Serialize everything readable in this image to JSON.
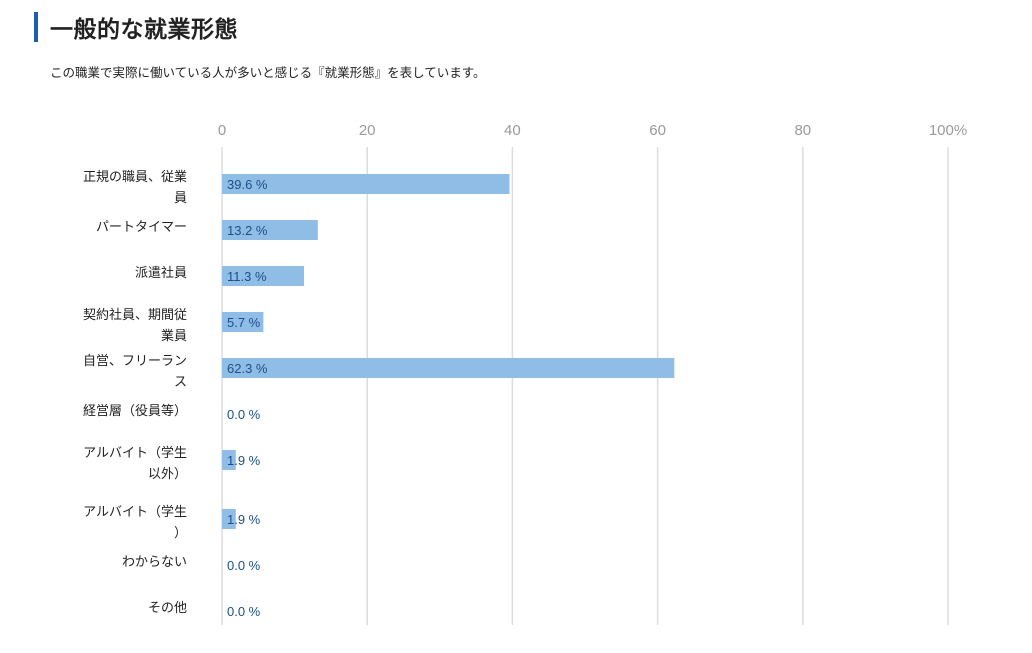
{
  "page": {
    "title": "一般的な就業形態",
    "description": "この職業で実際に働いている人が多いと感じる『就業形態』を表しています。"
  },
  "colors": {
    "accent": "#1a5fb4",
    "bar": "#90bde6",
    "value_text": "#1b4f8a",
    "grid": "#dddddd"
  },
  "chart_data": {
    "type": "bar",
    "orientation": "horizontal",
    "categories": [
      "正規の職員、従業員",
      "パートタイマー",
      "派遣社員",
      "契約社員、期間従業員",
      "自営、フリーランス",
      "経営層（役員等）",
      "アルバイト（学生以外）",
      "アルバイト（学生）",
      "わからない",
      "その他"
    ],
    "values": [
      39.6,
      13.2,
      11.3,
      5.7,
      62.3,
      0.0,
      1.9,
      1.9,
      0.0,
      0.0
    ],
    "value_labels": [
      "39.6 %",
      "13.2 %",
      "11.3 %",
      "5.7 %",
      "62.3 %",
      "0.0 %",
      "1.9 %",
      "1.9 %",
      "0.0 %",
      "0.0 %"
    ],
    "xlim": [
      0,
      100
    ],
    "x_ticks": [
      "0",
      "20",
      "40",
      "60",
      "80",
      "100%"
    ],
    "grid": true
  }
}
